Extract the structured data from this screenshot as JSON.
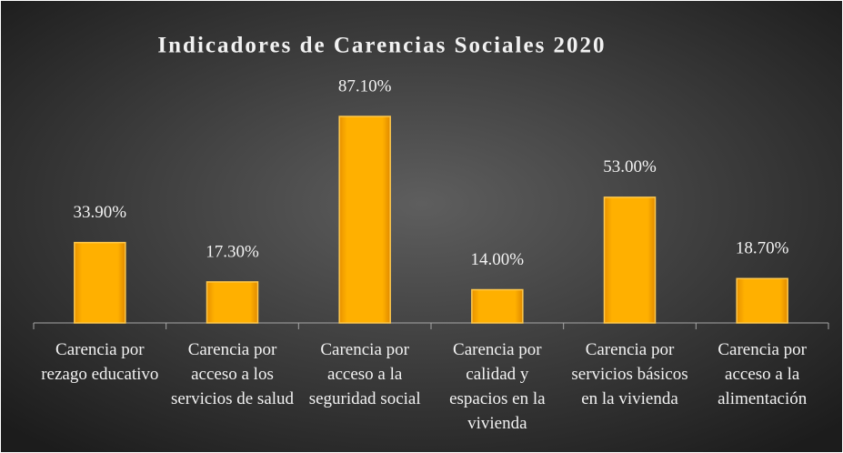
{
  "chart_data": {
    "type": "bar",
    "title": "Indicadores de Carencias Sociales 2020",
    "categories": [
      "Carencia por rezago educativo",
      "Carencia por acceso a los servicios de salud",
      "Carencia por acceso a la seguridad social",
      "Carencia por calidad y espacios en la vivienda",
      "Carencia por servicios básicos en la vivienda",
      "Carencia por acceso a la alimentación"
    ],
    "values": [
      33.9,
      17.3,
      87.1,
      14.0,
      53.0,
      18.7
    ],
    "value_labels": [
      "33.90%",
      "17.30%",
      "87.10%",
      "14.00%",
      "53.00%",
      "18.70%"
    ],
    "color": "#ffa500",
    "ylim": [
      0,
      100
    ]
  }
}
